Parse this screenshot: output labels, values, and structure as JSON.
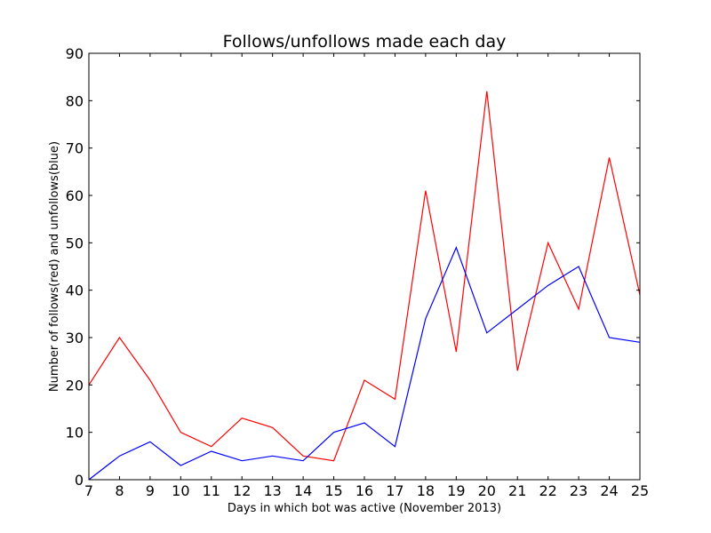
{
  "chart_data": {
    "type": "line",
    "title": "Follows/unfollows made each day",
    "xlabel": "Days in which bot was active (November 2013)",
    "ylabel": "Number of follows(red) and unfollows(blue)",
    "x": [
      7,
      8,
      9,
      10,
      11,
      12,
      13,
      14,
      15,
      16,
      17,
      18,
      19,
      20,
      21,
      22,
      23,
      24,
      25
    ],
    "xlim": [
      7,
      25
    ],
    "ylim": [
      0,
      90
    ],
    "xticks": [
      7,
      8,
      9,
      10,
      11,
      12,
      13,
      14,
      15,
      16,
      17,
      18,
      19,
      20,
      21,
      22,
      23,
      24,
      25
    ],
    "yticks": [
      0,
      10,
      20,
      30,
      40,
      50,
      60,
      70,
      80,
      90
    ],
    "grid": false,
    "series": [
      {
        "color": "#ff0000",
        "values": [
          20,
          30,
          21,
          10,
          7,
          13,
          11,
          5,
          4,
          21,
          17,
          61,
          27,
          82,
          23,
          50,
          36,
          68,
          39
        ]
      },
      {
        "color": "#0000ff",
        "values": [
          0,
          5,
          8,
          3,
          6,
          4,
          5,
          4,
          10,
          12,
          7,
          34,
          49,
          31,
          36,
          41,
          45,
          30,
          29
        ]
      }
    ]
  }
}
